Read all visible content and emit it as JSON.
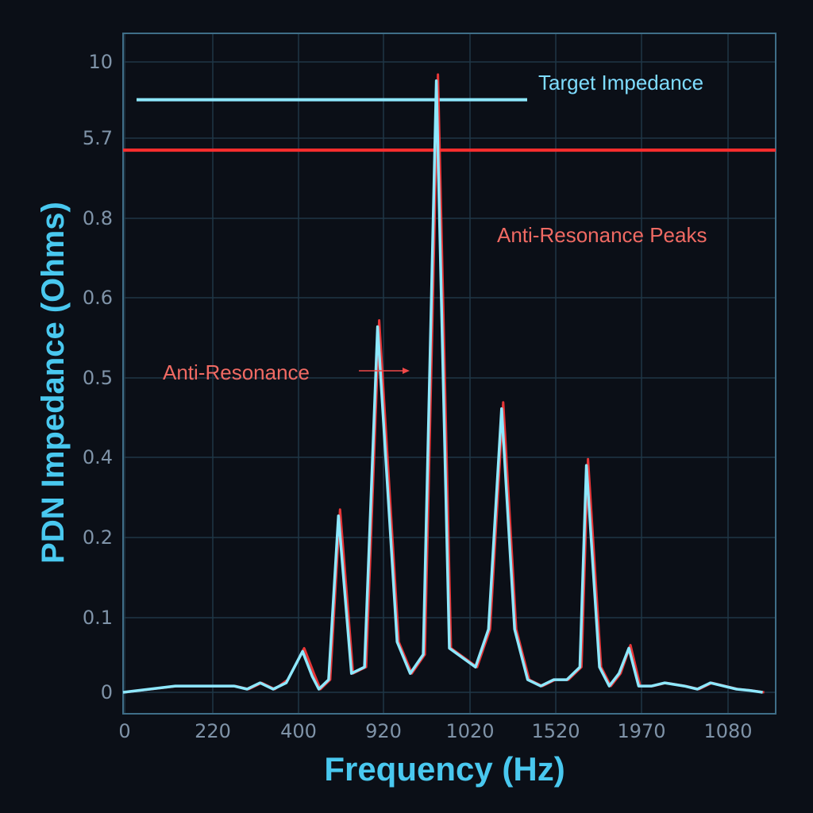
{
  "chart_data": {
    "type": "line",
    "xlabel": "Frequency (Hz)",
    "ylabel": "PDN Impedance (Ohms)",
    "x_ticks": [
      "0",
      "220",
      "400",
      "920",
      "1020",
      "1520",
      "1970",
      "1080"
    ],
    "y_ticks": [
      "0",
      "0.1",
      "0.2",
      "0.4",
      "0.5",
      "0.6",
      "0.8",
      "5.7",
      "10"
    ],
    "grid": true,
    "series": [
      {
        "color": "#8ee8ff",
        "x": [
          0,
          80,
          170,
          190,
          210,
          230,
          250,
          275,
          290,
          300,
          315,
          330,
          350,
          370,
          390,
          420,
          440,
          460,
          480,
          500,
          540,
          560,
          580,
          600,
          620,
          640,
          660,
          680,
          700,
          710,
          730,
          745,
          760,
          775,
          790,
          800,
          810,
          830,
          860,
          880,
          900,
          940,
          960,
          980
        ],
        "y": [
          0,
          0.01,
          0.01,
          0.005,
          0.015,
          0.005,
          0.015,
          0.065,
          0.025,
          0.005,
          0.02,
          0.28,
          0.03,
          0.04,
          0.58,
          0.08,
          0.03,
          0.06,
          0.97,
          0.07,
          0.04,
          0.1,
          0.45,
          0.1,
          0.02,
          0.01,
          0.02,
          0.02,
          0.04,
          0.36,
          0.04,
          0.01,
          0.03,
          0.07,
          0.01,
          0.01,
          0.01,
          0.015,
          0.01,
          0.005,
          0.015,
          0.005,
          0.003,
          0.0
        ]
      },
      {
        "color": "#ff3b3b",
        "x": [
          0,
          80,
          170,
          190,
          210,
          230,
          250,
          275,
          290,
          300,
          315,
          330,
          350,
          370,
          390,
          420,
          440,
          460,
          480,
          500,
          540,
          560,
          580,
          600,
          620,
          640,
          660,
          680,
          700,
          710,
          730,
          745,
          760,
          775,
          790,
          800,
          810,
          830,
          860,
          880,
          900,
          940,
          960,
          980
        ],
        "y": [
          0,
          0.01,
          0.01,
          0.005,
          0.015,
          0.005,
          0.02,
          0.07,
          0.03,
          0.005,
          0.02,
          0.29,
          0.03,
          0.04,
          0.59,
          0.08,
          0.03,
          0.06,
          0.98,
          0.07,
          0.04,
          0.1,
          0.46,
          0.1,
          0.02,
          0.01,
          0.02,
          0.02,
          0.04,
          0.37,
          0.04,
          0.01,
          0.03,
          0.075,
          0.01,
          0.01,
          0.01,
          0.015,
          0.01,
          0.005,
          0.015,
          0.005,
          0.003,
          0.0
        ]
      }
    ],
    "reference_lines": [
      {
        "label": "Target Impedance",
        "value": 0.94,
        "color": "#8ee8ff"
      },
      {
        "label": "",
        "value": 0.86,
        "color": "#ff2e2e"
      }
    ],
    "annotations": [
      {
        "text": "Anti-Resonance Peaks",
        "color": "#f06a63"
      },
      {
        "text": "Anti-Resonance",
        "color": "#f06a63",
        "arrow": true
      }
    ]
  }
}
